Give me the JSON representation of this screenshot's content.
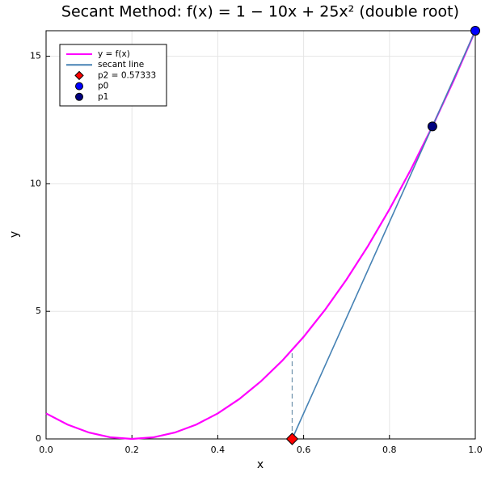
{
  "chart_data": {
    "type": "line",
    "title": "Secant Method: f(x) = 1 − 10x + 25x² (double root)",
    "x_label": "x",
    "y_label": "y",
    "xlim": [
      0,
      1
    ],
    "ylim": [
      0,
      16
    ],
    "xticks": [
      {
        "value": 0,
        "label": "0.0"
      },
      0.2,
      0.4,
      0.6,
      0.8,
      {
        "value": 1,
        "label": "1.0"
      }
    ],
    "yticks": [
      0,
      5,
      10,
      15
    ],
    "grid": true,
    "legend": "top-left",
    "series": [
      {
        "name": "y = f(x)",
        "color": "#ff00ff",
        "style": "line",
        "x": [
          0,
          0.05,
          0.1,
          0.15,
          0.2,
          0.25,
          0.3,
          0.35,
          0.4,
          0.45,
          0.5,
          0.55,
          0.6,
          0.65,
          0.7,
          0.75,
          0.8,
          0.85,
          0.9,
          0.95,
          1
        ],
        "values": [
          1,
          0.5625,
          0.25,
          0.0625,
          0,
          0.0625,
          0.25,
          0.5625,
          1,
          1.5625,
          2.25,
          3.0625,
          4,
          5.0625,
          6.25,
          7.5625,
          9,
          10.5625,
          12.25,
          14.0625,
          16
        ]
      },
      {
        "name": "secant line",
        "color": "#4682b4",
        "style": "line",
        "x": [
          0.57333,
          1
        ],
        "values": [
          0,
          16
        ]
      },
      {
        "name": "p2 = 0.57333",
        "color": "#ff0000",
        "style": "diamond",
        "x": [
          0.57333
        ],
        "values": [
          0
        ]
      },
      {
        "name": "p0",
        "color": "#0000ff",
        "style": "circle",
        "x": [
          1
        ],
        "values": [
          16
        ]
      },
      {
        "name": "p1",
        "color": "#000080",
        "style": "circle",
        "x": [
          0.9
        ],
        "values": [
          12.25
        ]
      }
    ],
    "dashed_line": {
      "color": "#6f93ad",
      "x": [
        0.57333,
        0.57333
      ],
      "values": [
        0,
        3.48
      ]
    }
  }
}
